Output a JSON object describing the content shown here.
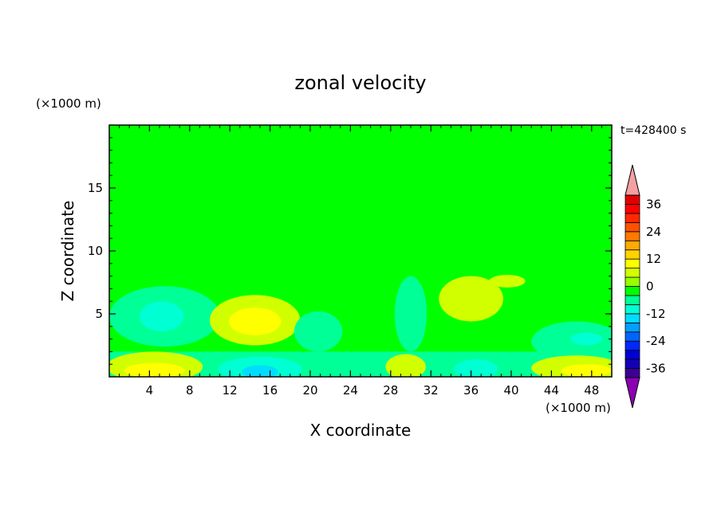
{
  "chart_data": {
    "type": "heatmap",
    "title": "zonal velocity",
    "xlabel": "X coordinate",
    "ylabel": "Z coordinate",
    "x_unit": "(×1000 m)",
    "y_unit": "(×1000 m)",
    "time_label": "t=428400 s",
    "xlim": [
      0,
      50
    ],
    "ylim": [
      0,
      20
    ],
    "x_ticks": [
      4,
      8,
      12,
      16,
      20,
      24,
      28,
      32,
      36,
      40,
      44,
      48
    ],
    "y_ticks": [
      5,
      10,
      15
    ],
    "colorbar": {
      "vmin": -40,
      "vmax": 40,
      "step": 4,
      "tick_values": [
        36,
        24,
        12,
        0,
        -12,
        -24,
        -36
      ],
      "over_color": "#f4a0a0",
      "under_color": "#8c00b4",
      "colors": [
        "#3c0096",
        "#1400b4",
        "#0000d2",
        "#0028ff",
        "#0064ff",
        "#00a0ff",
        "#00dcff",
        "#00ffd2",
        "#00ff96",
        "#00ff00",
        "#96ff00",
        "#d2ff00",
        "#ffff00",
        "#ffd200",
        "#ffaa00",
        "#ff7800",
        "#ff5000",
        "#ff2800",
        "#ff0000",
        "#e10000"
      ]
    },
    "regions": [
      {
        "type": "ellipse",
        "x": 5.5,
        "y": 4.8,
        "rx": 5.5,
        "ry": 2.4,
        "value": -6
      },
      {
        "type": "ellipse",
        "x": 5.2,
        "y": 4.8,
        "rx": 2.2,
        "ry": 1.2,
        "value": -10
      },
      {
        "type": "ellipse",
        "x": 14.5,
        "y": 4.5,
        "rx": 4.5,
        "ry": 2.0,
        "value": 6
      },
      {
        "type": "ellipse",
        "x": 14.5,
        "y": 4.4,
        "rx": 2.6,
        "ry": 1.1,
        "value": 10
      },
      {
        "type": "ellipse",
        "x": 20.8,
        "y": 3.6,
        "rx": 2.4,
        "ry": 1.6,
        "value": -6
      },
      {
        "type": "ellipse",
        "x": 30.0,
        "y": 5.0,
        "rx": 1.6,
        "ry": 3.0,
        "value": -6
      },
      {
        "type": "ellipse",
        "x": 36.0,
        "y": 6.2,
        "rx": 3.2,
        "ry": 1.8,
        "value": 6
      },
      {
        "type": "ellipse",
        "x": 39.6,
        "y": 7.6,
        "rx": 1.8,
        "ry": 0.5,
        "value": 6
      },
      {
        "type": "ellipse",
        "x": 46.5,
        "y": 2.8,
        "rx": 4.5,
        "ry": 1.6,
        "value": -6
      },
      {
        "type": "ellipse",
        "x": 47.5,
        "y": 3.0,
        "rx": 1.6,
        "ry": 0.5,
        "value": -10
      },
      {
        "type": "rect",
        "x0": 0,
        "x1": 50,
        "y0": 0,
        "y1": 2.0,
        "value": -6
      },
      {
        "type": "ellipse",
        "x": 4.5,
        "y": 0.8,
        "rx": 4.8,
        "ry": 1.2,
        "value": 6
      },
      {
        "type": "ellipse",
        "x": 4.5,
        "y": 0.5,
        "rx": 3.0,
        "ry": 0.6,
        "value": 10
      },
      {
        "type": "ellipse",
        "x": 15.0,
        "y": 0.6,
        "rx": 4.2,
        "ry": 1.0,
        "value": -10
      },
      {
        "type": "ellipse",
        "x": 15.0,
        "y": 0.4,
        "rx": 1.8,
        "ry": 0.5,
        "value": -14
      },
      {
        "type": "ellipse",
        "x": 29.5,
        "y": 0.8,
        "rx": 2.0,
        "ry": 1.0,
        "value": 6
      },
      {
        "type": "ellipse",
        "x": 36.5,
        "y": 0.6,
        "rx": 2.2,
        "ry": 0.8,
        "value": -10
      },
      {
        "type": "ellipse",
        "x": 46.5,
        "y": 0.7,
        "rx": 4.5,
        "ry": 1.0,
        "value": 6
      },
      {
        "type": "ellipse",
        "x": 47.5,
        "y": 0.5,
        "rx": 2.5,
        "ry": 0.5,
        "value": 10
      },
      {
        "type": "ellipse",
        "x": 6.0,
        "y": 17.0,
        "rx": 7.0,
        "ry": 2.0,
        "value": -2
      },
      {
        "type": "ellipse",
        "x": 30.0,
        "y": 16.0,
        "rx": 10.0,
        "ry": 2.2,
        "value": -2
      },
      {
        "type": "ellipse",
        "x": 25.0,
        "y": 14.0,
        "rx": 12.0,
        "ry": 1.5,
        "value": -2
      },
      {
        "type": "ellipse",
        "x": 45.0,
        "y": 13.0,
        "rx": 6.0,
        "ry": 1.5,
        "value": -2
      },
      {
        "type": "ellipse",
        "x": 8.0,
        "y": 9.0,
        "rx": 8.0,
        "ry": 1.5,
        "value": -2
      },
      {
        "type": "ellipse",
        "x": 47.0,
        "y": 15.0,
        "rx": 4.5,
        "ry": 2.0,
        "value": -2
      },
      {
        "type": "ellipse",
        "x": 48.0,
        "y": 9.0,
        "rx": 3.0,
        "ry": 1.0,
        "value": -2
      }
    ]
  }
}
